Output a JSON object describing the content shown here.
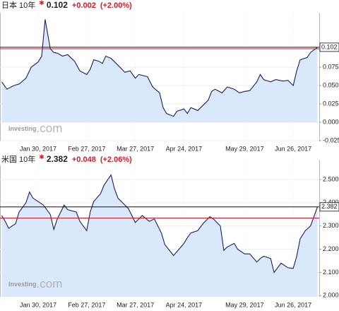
{
  "chart_data": [
    {
      "type": "line",
      "title": "日本 10年",
      "current": 0.102,
      "previous": 0.1,
      "change": "+0.002",
      "change_pct": "(+2.00%)",
      "color": "#1c1f5a",
      "fill": "#d9e8fb",
      "ref_color": "#c8202a",
      "grid": true,
      "logo": {
        "brand": "Investing",
        "suffix": ".com"
      },
      "x": [
        "2017-01-09",
        "2017-01-12",
        "2017-01-16",
        "2017-01-19",
        "2017-01-23",
        "2017-01-26",
        "2017-01-30",
        "2017-02-01",
        "2017-02-03",
        "2017-02-06",
        "2017-02-08",
        "2017-02-10",
        "2017-02-13",
        "2017-02-16",
        "2017-02-20",
        "2017-02-23",
        "2017-02-27",
        "2017-03-01",
        "2017-03-03",
        "2017-03-06",
        "2017-03-08",
        "2017-03-10",
        "2017-03-13",
        "2017-03-16",
        "2017-03-21",
        "2017-03-24",
        "2017-03-27",
        "2017-03-29",
        "2017-04-03",
        "2017-04-06",
        "2017-04-10",
        "2017-04-12",
        "2017-04-14",
        "2017-04-18",
        "2017-04-20",
        "2017-04-24",
        "2017-04-26",
        "2017-04-28",
        "2017-05-02",
        "2017-05-08",
        "2017-05-10",
        "2017-05-12",
        "2017-05-16",
        "2017-05-19",
        "2017-05-23",
        "2017-05-26",
        "2017-05-29",
        "2017-06-01",
        "2017-06-05",
        "2017-06-07",
        "2017-06-09",
        "2017-06-13",
        "2017-06-16",
        "2017-06-20",
        "2017-06-23",
        "2017-06-26",
        "2017-06-28",
        "2017-06-30",
        "2017-07-04",
        "2017-07-06",
        "2017-07-10"
      ],
      "values": [
        0.055,
        0.045,
        0.05,
        0.052,
        0.06,
        0.075,
        0.082,
        0.09,
        0.14,
        0.1,
        0.095,
        0.094,
        0.09,
        0.092,
        0.083,
        0.07,
        0.065,
        0.072,
        0.085,
        0.083,
        0.08,
        0.09,
        0.087,
        0.08,
        0.068,
        0.07,
        0.06,
        0.065,
        0.062,
        0.048,
        0.04,
        0.02,
        0.012,
        0.008,
        0.015,
        0.018,
        0.012,
        0.02,
        0.016,
        0.03,
        0.042,
        0.045,
        0.04,
        0.048,
        0.045,
        0.04,
        0.042,
        0.043,
        0.055,
        0.065,
        0.058,
        0.055,
        0.058,
        0.056,
        0.057,
        0.05,
        0.07,
        0.085,
        0.088,
        0.095,
        0.102
      ],
      "xlim": [
        "2017-01-08",
        "2017-07-11"
      ],
      "xticks": [
        {
          "value": "2017-01-30",
          "label": "Jan 30, 2017"
        },
        {
          "value": "2017-02-27",
          "label": "Feb 27, 2017"
        },
        {
          "value": "2017-03-27",
          "label": "Mar 27, 2017"
        },
        {
          "value": "2017-04-24",
          "label": "Apr 24, 2017"
        },
        {
          "value": "2017-05-29",
          "label": "May 29, 2017"
        },
        {
          "value": "2017-06-26",
          "label": "Jun 26, 2017"
        }
      ],
      "ylim": [
        -0.026,
        0.149
      ],
      "yticks": [
        {
          "value": -0.025,
          "label": "-0.025"
        },
        {
          "value": 0,
          "label": "0.000"
        },
        {
          "value": 0.025,
          "label": "0.025"
        },
        {
          "value": 0.05,
          "label": "0.050"
        },
        {
          "value": 0.075,
          "label": "0.075"
        },
        {
          "value": 0.1,
          "label": "0.100"
        }
      ]
    },
    {
      "type": "line",
      "title": "米国 10年",
      "current": 2.382,
      "previous": 2.334,
      "change": "+0.048",
      "change_pct": "(+2.06%)",
      "color": "#1c1f5a",
      "fill": "#d9e8fb",
      "ref_color": "#c8202a",
      "grid": true,
      "logo": {
        "brand": "Investing",
        "suffix": ".com"
      },
      "x": [
        "2017-01-09",
        "2017-01-11",
        "2017-01-13",
        "2017-01-17",
        "2017-01-19",
        "2017-01-23",
        "2017-01-25",
        "2017-01-27",
        "2017-01-31",
        "2017-02-02",
        "2017-02-06",
        "2017-02-08",
        "2017-02-10",
        "2017-02-14",
        "2017-02-16",
        "2017-02-21",
        "2017-02-23",
        "2017-02-27",
        "2017-03-01",
        "2017-03-03",
        "2017-03-07",
        "2017-03-09",
        "2017-03-13",
        "2017-03-15",
        "2017-03-17",
        "2017-03-21",
        "2017-03-23",
        "2017-03-27",
        "2017-03-29",
        "2017-03-31",
        "2017-04-04",
        "2017-04-07",
        "2017-04-11",
        "2017-04-13",
        "2017-04-18",
        "2017-04-20",
        "2017-04-24",
        "2017-04-26",
        "2017-04-28",
        "2017-05-02",
        "2017-05-05",
        "2017-05-09",
        "2017-05-11",
        "2017-05-15",
        "2017-05-17",
        "2017-05-19",
        "2017-05-23",
        "2017-05-25",
        "2017-05-29",
        "2017-06-01",
        "2017-06-05",
        "2017-06-07",
        "2017-06-09",
        "2017-06-13",
        "2017-06-15",
        "2017-06-19",
        "2017-06-21",
        "2017-06-23",
        "2017-06-26",
        "2017-06-28",
        "2017-06-30",
        "2017-07-03",
        "2017-07-06",
        "2017-07-10"
      ],
      "values": [
        2.345,
        2.32,
        2.29,
        2.31,
        2.36,
        2.4,
        2.446,
        2.42,
        2.4,
        2.39,
        2.35,
        2.285,
        2.33,
        2.39,
        2.37,
        2.36,
        2.32,
        2.28,
        2.36,
        2.405,
        2.44,
        2.476,
        2.52,
        2.46,
        2.42,
        2.39,
        2.375,
        2.315,
        2.33,
        2.345,
        2.32,
        2.33,
        2.27,
        2.22,
        2.173,
        2.19,
        2.225,
        2.25,
        2.27,
        2.28,
        2.31,
        2.34,
        2.33,
        2.3,
        2.195,
        2.21,
        2.225,
        2.2,
        2.18,
        2.18,
        2.145,
        2.16,
        2.17,
        2.16,
        2.1,
        2.14,
        2.13,
        2.12,
        2.118,
        2.17,
        2.245,
        2.28,
        2.3,
        2.382
      ],
      "xlim": [
        "2017-01-08",
        "2017-07-11"
      ],
      "xticks": [
        {
          "value": "2017-01-30",
          "label": "Jan 30, 2017"
        },
        {
          "value": "2017-02-27",
          "label": "Feb 27, 2017"
        },
        {
          "value": "2017-03-27",
          "label": "Mar 27, 2017"
        },
        {
          "value": "2017-04-24",
          "label": "Apr 24, 2017"
        },
        {
          "value": "2017-05-29",
          "label": "May 29, 2017"
        },
        {
          "value": "2017-06-26",
          "label": "Jun 26, 2017"
        }
      ],
      "ylim": [
        1.995,
        2.585
      ],
      "yticks": [
        {
          "value": 2,
          "label": "2.000"
        },
        {
          "value": 2.1,
          "label": "2.100"
        },
        {
          "value": 2.2,
          "label": "2.200"
        },
        {
          "value": 2.3,
          "label": "2.300"
        },
        {
          "value": 2.4,
          "label": "2.400"
        },
        {
          "value": 2.5,
          "label": "2.500"
        }
      ]
    }
  ]
}
